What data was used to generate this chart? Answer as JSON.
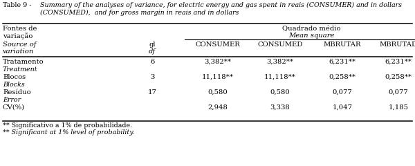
{
  "title_label": "Table 9 -",
  "title_text": "Summary of the analyses of variance, for electric energy and gas spent in reais (CONSUMER) and in dollars\n(CONSUMED),  and for gross margin in reais and in dollars",
  "header_left1": "Fontes de",
  "header_left2": "variação",
  "header_left3": "Source of",
  "header_left4": "variation",
  "header_center1": "Quadrado médio",
  "header_center2": "Mean square",
  "col_headers": [
    "gl",
    "CONSUMER",
    "CONSUMED",
    "MBRUTAR",
    "MBRUTAD"
  ],
  "col_headers2": [
    "df",
    "",
    "",
    "",
    ""
  ],
  "rows": [
    [
      "Tratamento",
      "Treatment",
      "6",
      "3,382**",
      "3,382**",
      "6,231**",
      "6,231**"
    ],
    [
      "Blocos",
      "Blocks",
      "3",
      "11,118**",
      "11,118**",
      "0,258**",
      "0,258**"
    ],
    [
      "Resíduo",
      "Error",
      "17",
      "0,580",
      "0,580",
      "0,077",
      "0,077"
    ],
    [
      "CV(%)",
      "",
      "",
      "2,948",
      "3,338",
      "1,047",
      "1,185"
    ]
  ],
  "footnote1": "** Significativo a 1% de probabilidade.",
  "footnote2": "** Significant at 1% level of probability.",
  "bg_color": "#ffffff"
}
